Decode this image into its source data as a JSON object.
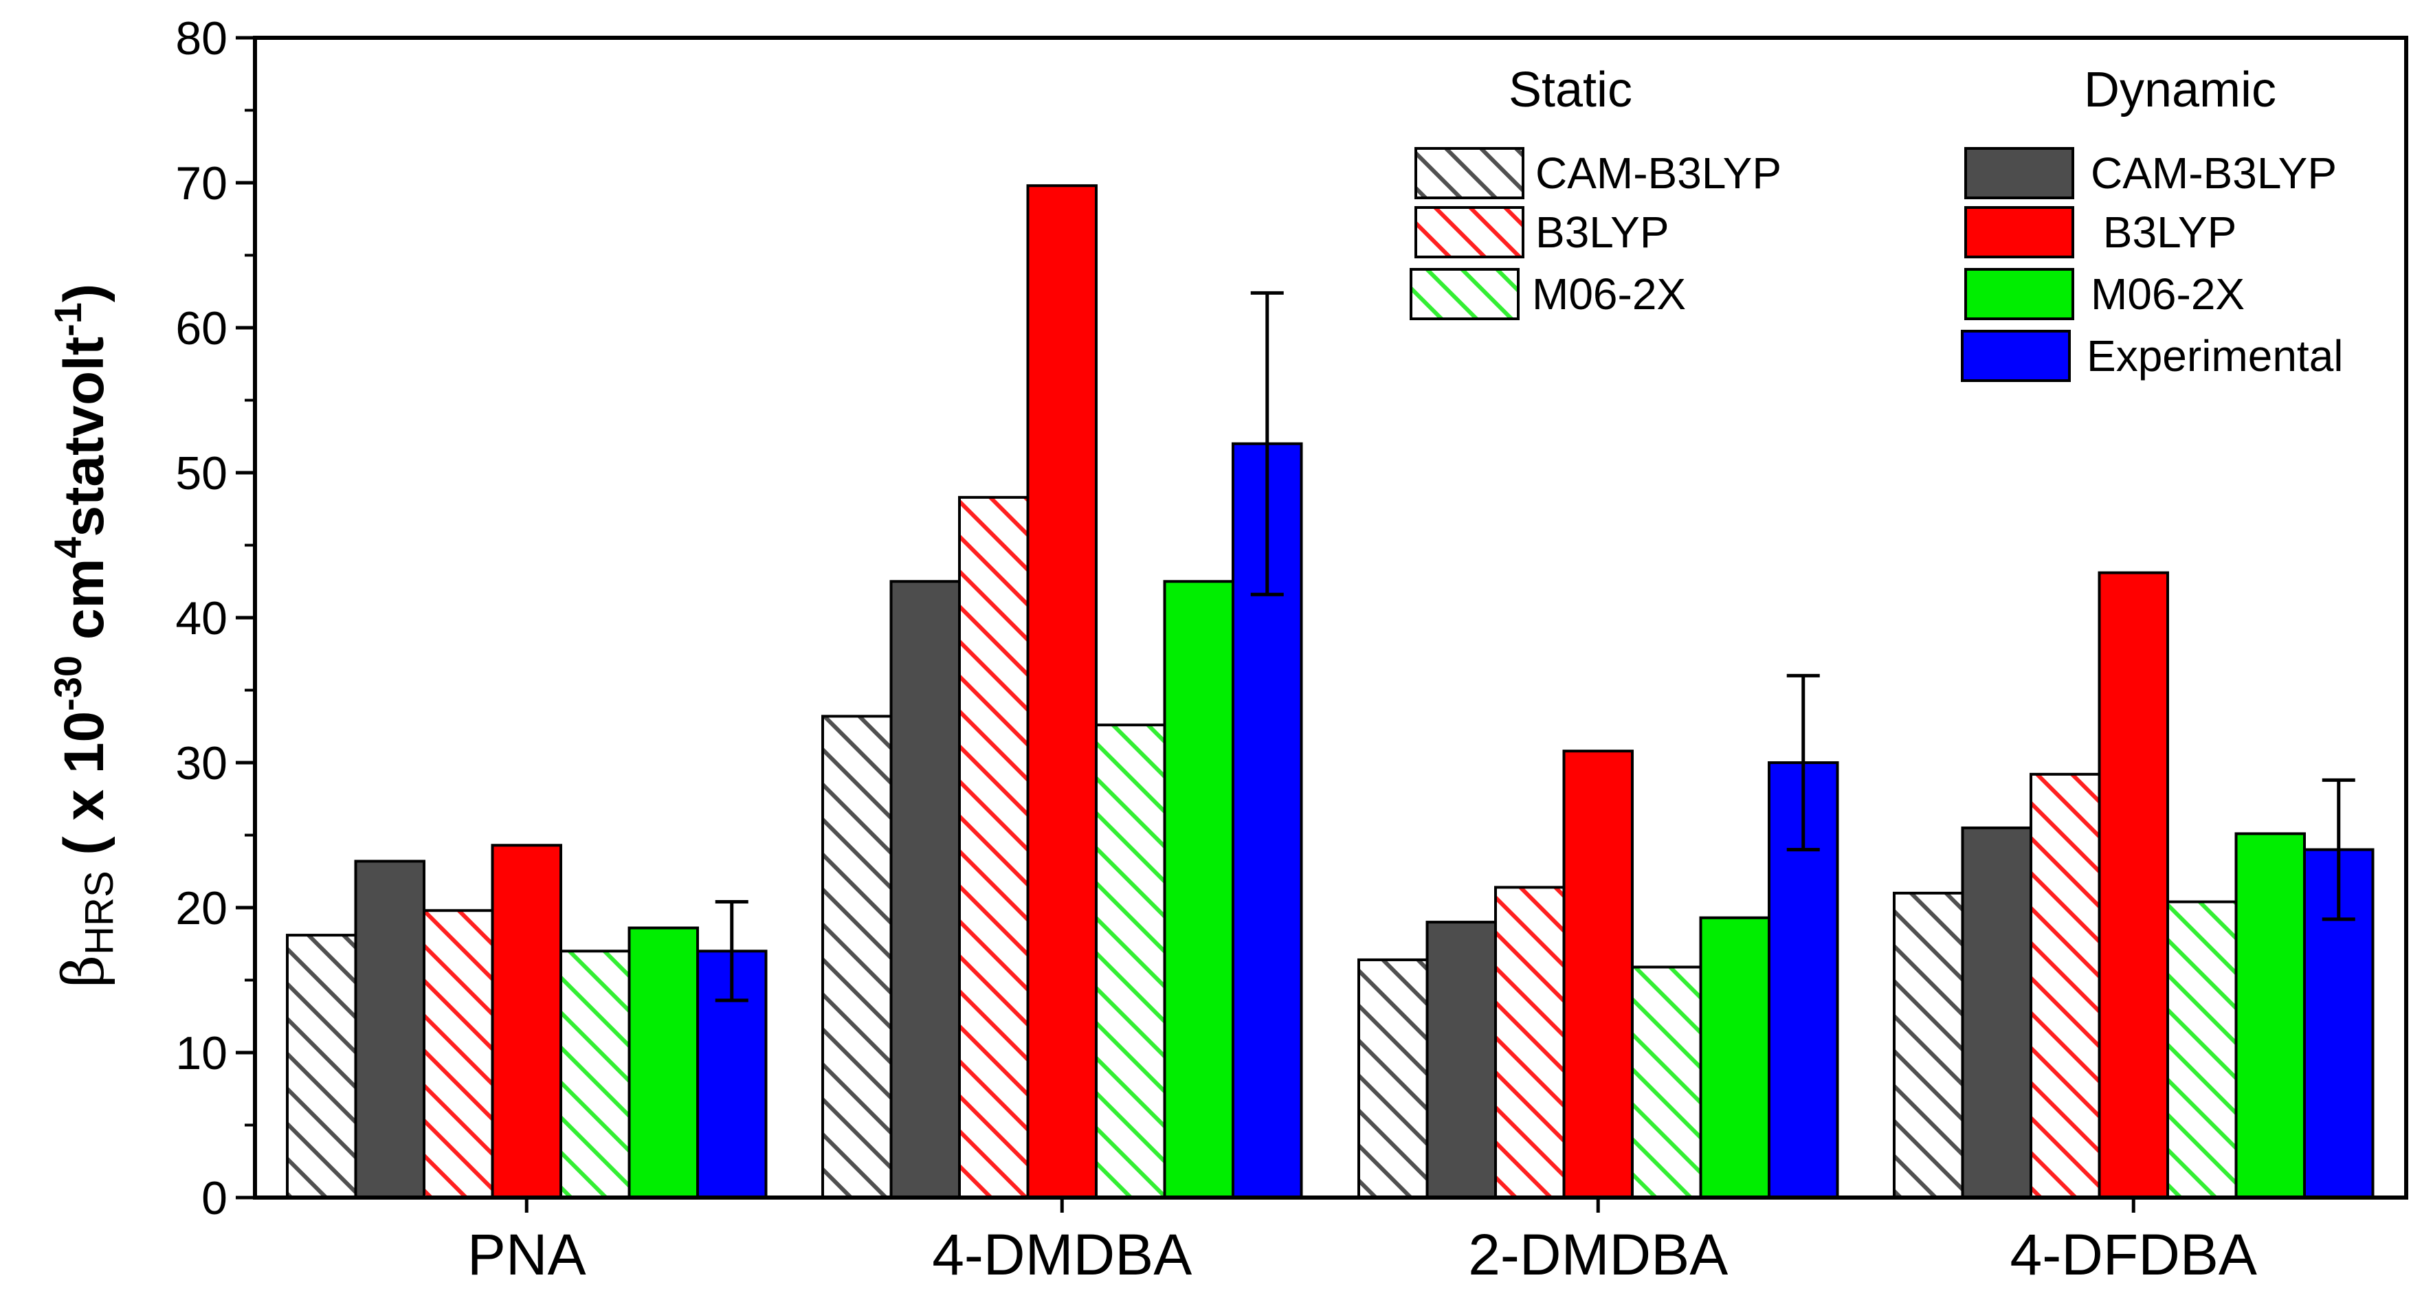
{
  "chart_data": {
    "type": "bar",
    "title": "",
    "xlabel": "",
    "ylabel": {
      "symbol": "β",
      "subscript": "HRS",
      "paren_open": " ( x 10",
      "exp1": "-30",
      "unit": " cm",
      "exp2": "4",
      "unit2": "statvolt",
      "exp3": "-1",
      "paren_close": ")"
    },
    "ylim": [
      0,
      80
    ],
    "yticks": [
      0,
      10,
      20,
      30,
      40,
      50,
      60,
      70,
      80
    ],
    "ytick_labels": [
      "0",
      "10",
      "20",
      "30",
      "40",
      "50",
      "60",
      "70",
      "80"
    ],
    "categories": [
      "PNA",
      "4-DMDBA",
      "2-DMDBA",
      "4-DFDBA"
    ],
    "series": [
      {
        "key": "s_cam",
        "name": "CAM-B3LYP",
        "group": "Static",
        "color": "#505050",
        "pattern": "hatched",
        "values": [
          18.1,
          33.2,
          16.4,
          21.0
        ]
      },
      {
        "key": "d_cam",
        "name": "CAM-B3LYP",
        "group": "Dynamic",
        "color": "#4d4d4d",
        "pattern": "solid",
        "values": [
          23.2,
          42.5,
          19.0,
          25.5
        ]
      },
      {
        "key": "s_b3",
        "name": "B3LYP",
        "group": "Static",
        "color": "#ff2020",
        "pattern": "hatched",
        "values": [
          19.8,
          48.3,
          21.4,
          29.2
        ]
      },
      {
        "key": "d_b3",
        "name": "B3LYP",
        "group": "Dynamic",
        "color": "#ff0000",
        "pattern": "solid",
        "values": [
          24.3,
          69.8,
          30.8,
          43.1
        ]
      },
      {
        "key": "s_m06",
        "name": "M06-2X",
        "group": "Static",
        "color": "#33ee33",
        "pattern": "hatched",
        "values": [
          17.0,
          32.6,
          15.9,
          20.4
        ]
      },
      {
        "key": "d_m06",
        "name": "M06-2X",
        "group": "Dynamic",
        "color": "#00ee00",
        "pattern": "solid",
        "values": [
          18.6,
          42.5,
          19.3,
          25.1
        ]
      },
      {
        "key": "exp",
        "name": "Experimental",
        "group": "Dynamic",
        "color": "#0000ff",
        "pattern": "solid",
        "values": [
          17.0,
          52.0,
          30.0,
          24.0
        ],
        "error_bars": [
          [
            13.6,
            20.4
          ],
          [
            41.6,
            62.4
          ],
          [
            24.0,
            36.0
          ],
          [
            19.2,
            28.8
          ]
        ]
      }
    ],
    "legend": {
      "position": "top-right",
      "static_title": "Static",
      "dynamic_title": "Dynamic",
      "static_items": [
        {
          "label": "CAM-B3LYP",
          "series": "s_cam"
        },
        {
          "label": "B3LYP",
          "series": "s_b3"
        },
        {
          "label": "M06-2X",
          "series": "s_m06"
        }
      ],
      "dynamic_items": [
        {
          "label": "CAM-B3LYP",
          "series": "d_cam"
        },
        {
          "label": " B3LYP",
          "series": "d_b3"
        },
        {
          "label": "M06-2X",
          "series": "d_m06"
        },
        {
          "label": "Experimental",
          "series": "exp"
        }
      ]
    }
  }
}
